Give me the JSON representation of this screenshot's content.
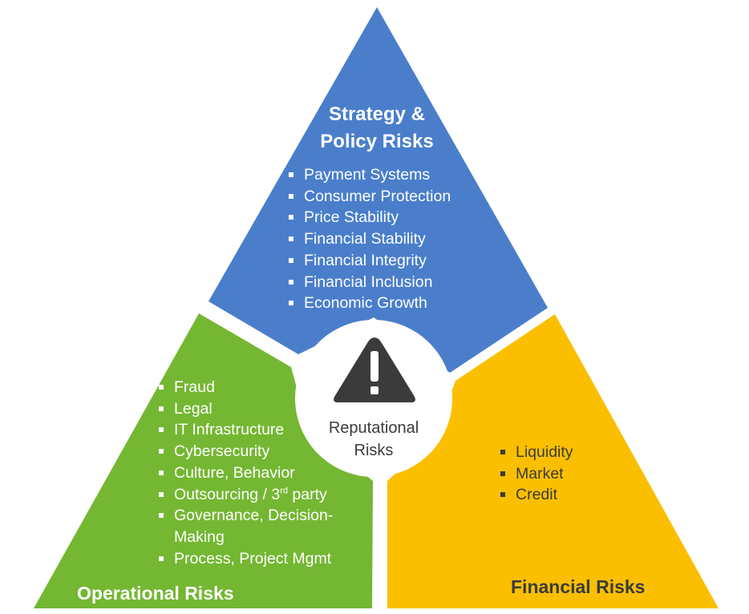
{
  "colors": {
    "strategy": "#4a7ecb",
    "operational": "#74b732",
    "financial": "#fbbf00",
    "center_circle": "#ffffff",
    "warning_icon": "#3b3b3b"
  },
  "strategy": {
    "title_line1": "Strategy &",
    "title_line2": "Policy Risks",
    "items": [
      "Payment Systems",
      "Consumer Protection",
      "Price Stability",
      "Financial Stability",
      "Financial Integrity",
      "Financial Inclusion",
      "Economic Growth"
    ]
  },
  "operational": {
    "title": "Operational Risks",
    "items": [
      "Fraud",
      "Legal",
      "IT Infrastructure",
      "Cybersecurity",
      "Culture, Behavior",
      "Outsourcing / 3rd party",
      "Governance, Decision-Making",
      "Process, Project Mgmt"
    ]
  },
  "financial": {
    "title": "Financial Risks",
    "items": [
      "Liquidity",
      "Market",
      "Credit"
    ]
  },
  "center": {
    "icon": "warning-icon",
    "label_line1": "Reputational",
    "label_line2": "Risks"
  }
}
